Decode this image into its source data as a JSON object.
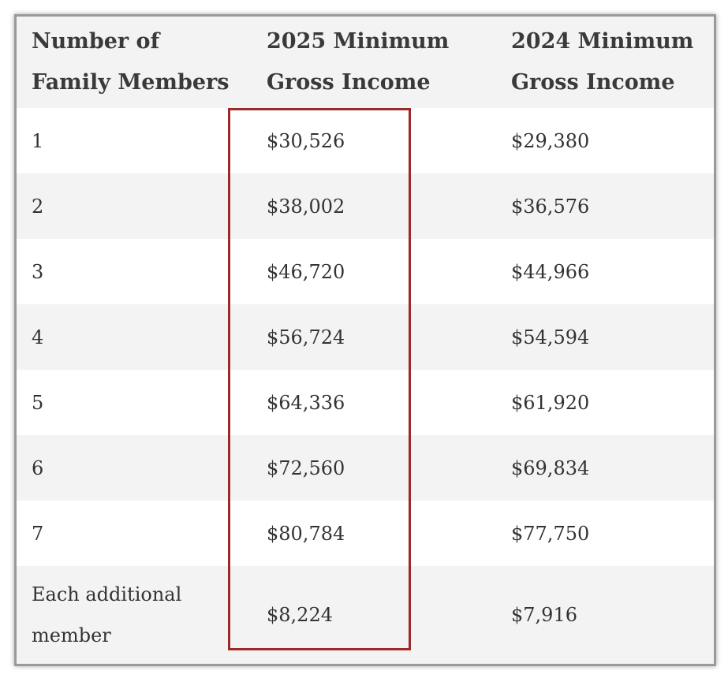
{
  "table": {
    "header": [
      "Number of Family Members",
      "2025 Minimum Gross Income",
      "2024 Minimum Gross Income"
    ],
    "rows": [
      [
        "1",
        "$30,526",
        "$29,380"
      ],
      [
        "2",
        "$38,002",
        "$36,576"
      ],
      [
        "3",
        "$46,720",
        "$44,966"
      ],
      [
        "4",
        "$56,724",
        "$54,594"
      ],
      [
        "5",
        "$64,336",
        "$61,920"
      ],
      [
        "6",
        "$72,560",
        "$69,834"
      ],
      [
        "7",
        "$80,784",
        "$77,750"
      ],
      [
        "Each additional member",
        "$8,224",
        "$7,916"
      ]
    ]
  }
}
